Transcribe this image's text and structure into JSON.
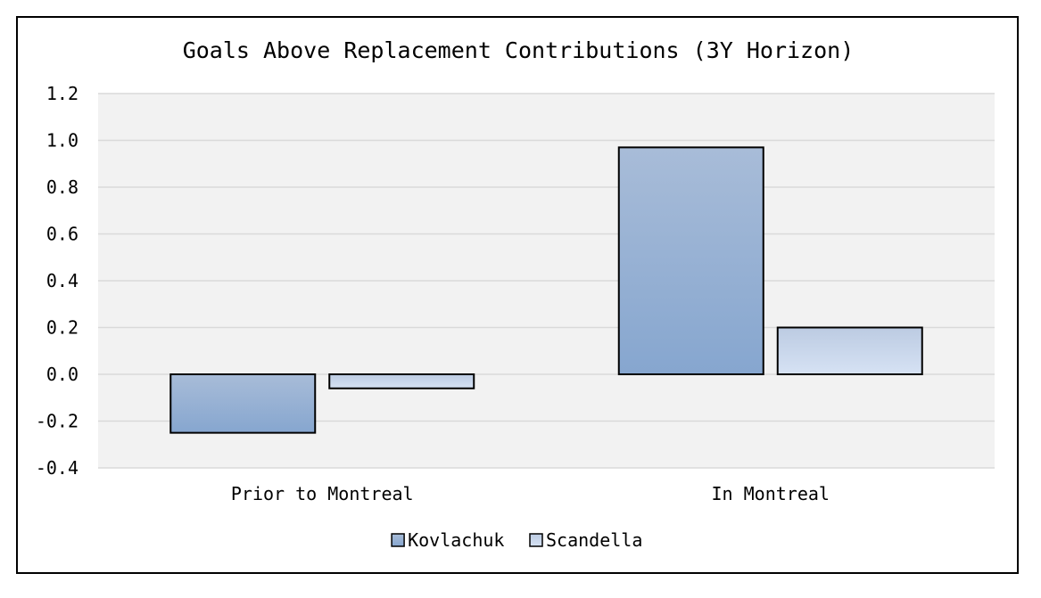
{
  "chart_data": {
    "type": "bar",
    "title": "Goals Above Replacement Contributions (3Y Horizon)",
    "xlabel": "",
    "ylabel": "",
    "categories": [
      "Prior to Montreal",
      "In Montreal"
    ],
    "series": [
      {
        "name": "Kovlachuk",
        "values": [
          -0.25,
          0.97
        ],
        "color_top": "#a8bcd8",
        "color_bottom": "#86a6cf"
      },
      {
        "name": "Scandella",
        "values": [
          -0.06,
          0.2
        ],
        "color_top": "#bccbe2",
        "color_bottom": "#d6e2f4"
      }
    ],
    "ylim": [
      -0.4,
      1.2
    ],
    "yticks": [
      1.2,
      1.0,
      0.8,
      0.6,
      0.4,
      0.2,
      0.0,
      -0.2,
      -0.4
    ],
    "ytick_labels": [
      "1.2",
      "1.0",
      "0.8",
      "0.6",
      "0.4",
      "0.2",
      "0.0",
      "-0.2",
      "-0.4"
    ],
    "grid": true,
    "legend_position": "bottom",
    "plot_background": "#f2f2f2",
    "gridline_color": "#d9d9d9"
  }
}
